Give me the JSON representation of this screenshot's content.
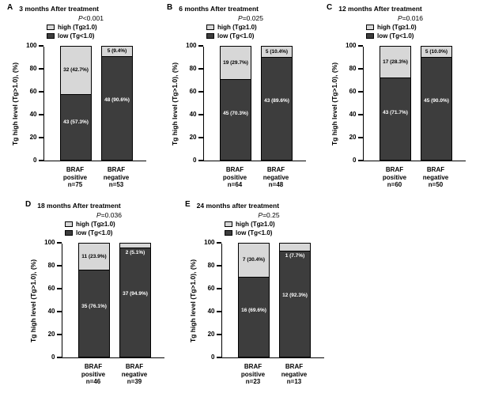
{
  "colors": {
    "high": "#d7d7d7",
    "low": "#3d3d3d"
  },
  "chart_data": [
    {
      "type": "bar",
      "stacked": true,
      "panel": "A",
      "title": "3 months After treatment",
      "p_value": "P<0.001",
      "ylabel": "Tg high level (Tg>1.0), (%)",
      "ylim": [
        0,
        100
      ],
      "yticks": [
        0,
        20,
        40,
        60,
        80,
        100
      ],
      "legend": [
        "high (Tg≥1.0)",
        "low (Tg<1.0)"
      ],
      "groups": [
        {
          "category": [
            "BRAF",
            "positive"
          ],
          "n": "n=75",
          "high": {
            "count": 32,
            "pct": 42.7,
            "label": "32 (42.7%)"
          },
          "low": {
            "count": 43,
            "pct": 57.3,
            "label": "43 (57.3%)"
          }
        },
        {
          "category": [
            "BRAF",
            "negative"
          ],
          "n": "n=53",
          "high": {
            "count": 5,
            "pct": 9.4,
            "label": "5 (9.4%)"
          },
          "low": {
            "count": 48,
            "pct": 90.6,
            "label": "48 (90.6%)"
          }
        }
      ]
    },
    {
      "type": "bar",
      "stacked": true,
      "panel": "B",
      "title": "6 months After treatment",
      "p_value": "P=0.025",
      "ylabel": "Tg high level (Tg>1.0), (%)",
      "ylim": [
        0,
        100
      ],
      "yticks": [
        0,
        20,
        40,
        60,
        80,
        100
      ],
      "legend": [
        "high (Tg≥1.0)",
        "low (Tg<1.0)"
      ],
      "groups": [
        {
          "category": [
            "BRAF",
            "positive"
          ],
          "n": "n=64",
          "high": {
            "count": 19,
            "pct": 29.7,
            "label": "19 (29.7%)"
          },
          "low": {
            "count": 45,
            "pct": 70.3,
            "label": "45 (70.3%)"
          }
        },
        {
          "category": [
            "BRAF",
            "negative"
          ],
          "n": "n=48",
          "high": {
            "count": 5,
            "pct": 10.4,
            "label": "5 (10.4%)"
          },
          "low": {
            "count": 43,
            "pct": 89.6,
            "label": "43 (89.6%)"
          }
        }
      ]
    },
    {
      "type": "bar",
      "stacked": true,
      "panel": "C",
      "title": "12 months After treatment",
      "p_value": "P=0.016",
      "ylabel": "Tg high level (Tg>1.0), (%)",
      "ylim": [
        0,
        100
      ],
      "yticks": [
        0,
        20,
        40,
        60,
        80,
        100
      ],
      "legend": [
        "high (Tg≥1.0)",
        "low (Tg<1.0)"
      ],
      "groups": [
        {
          "category": [
            "BRAF",
            "positive"
          ],
          "n": "n=60",
          "high": {
            "count": 17,
            "pct": 28.3,
            "label": "17 (28.3%)"
          },
          "low": {
            "count": 43,
            "pct": 71.7,
            "label": "43 (71.7%)"
          }
        },
        {
          "category": [
            "BRAF",
            "negative"
          ],
          "n": "n=50",
          "high": {
            "count": 5,
            "pct": 10.0,
            "label": "5 (10.0%)"
          },
          "low": {
            "count": 45,
            "pct": 90.0,
            "label": "45 (90.0%)"
          }
        }
      ]
    },
    {
      "type": "bar",
      "stacked": true,
      "panel": "D",
      "title": "18 months After treatment",
      "p_value": "P=0.036",
      "ylabel": "Tg high level (Tg>1.0), (%)",
      "ylim": [
        0,
        100
      ],
      "yticks": [
        0,
        20,
        40,
        60,
        80,
        100
      ],
      "legend": [
        "high (Tg≥1.0)",
        "low (Tg<1.0)"
      ],
      "groups": [
        {
          "category": [
            "BRAF",
            "positive"
          ],
          "n": "n=46",
          "high": {
            "count": 11,
            "pct": 23.9,
            "label": "11 (23.9%)"
          },
          "low": {
            "count": 35,
            "pct": 76.1,
            "label": "35 (76.1%)"
          }
        },
        {
          "category": [
            "BRAF",
            "negative"
          ],
          "n": "n=39",
          "high": {
            "count": 2,
            "pct": 5.1,
            "label": "2 (5.1%)"
          },
          "low": {
            "count": 37,
            "pct": 94.9,
            "label": "37 (94.9%)"
          }
        }
      ]
    },
    {
      "type": "bar",
      "stacked": true,
      "panel": "E",
      "title": "24 months after treatment",
      "p_value": "P=0.25",
      "ylabel": "Tg high level (Tg>1.0), (%)",
      "ylim": [
        0,
        100
      ],
      "yticks": [
        0,
        20,
        40,
        60,
        80,
        100
      ],
      "legend": [
        "high (Tg≥1.0)",
        "low (Tg<1.0)"
      ],
      "groups": [
        {
          "category": [
            "BRAF",
            "positive"
          ],
          "n": "n=23",
          "high": {
            "count": 7,
            "pct": 30.4,
            "label": "7 (30.4%)"
          },
          "low": {
            "count": 16,
            "pct": 69.6,
            "label": "16 (69.6%)"
          }
        },
        {
          "category": [
            "BRAF",
            "negative"
          ],
          "n": "n=13",
          "high": {
            "count": 1,
            "pct": 7.7,
            "label": "1 (7.7%)"
          },
          "low": {
            "count": 12,
            "pct": 92.3,
            "label": "12 (92.3%)"
          }
        }
      ]
    }
  ]
}
